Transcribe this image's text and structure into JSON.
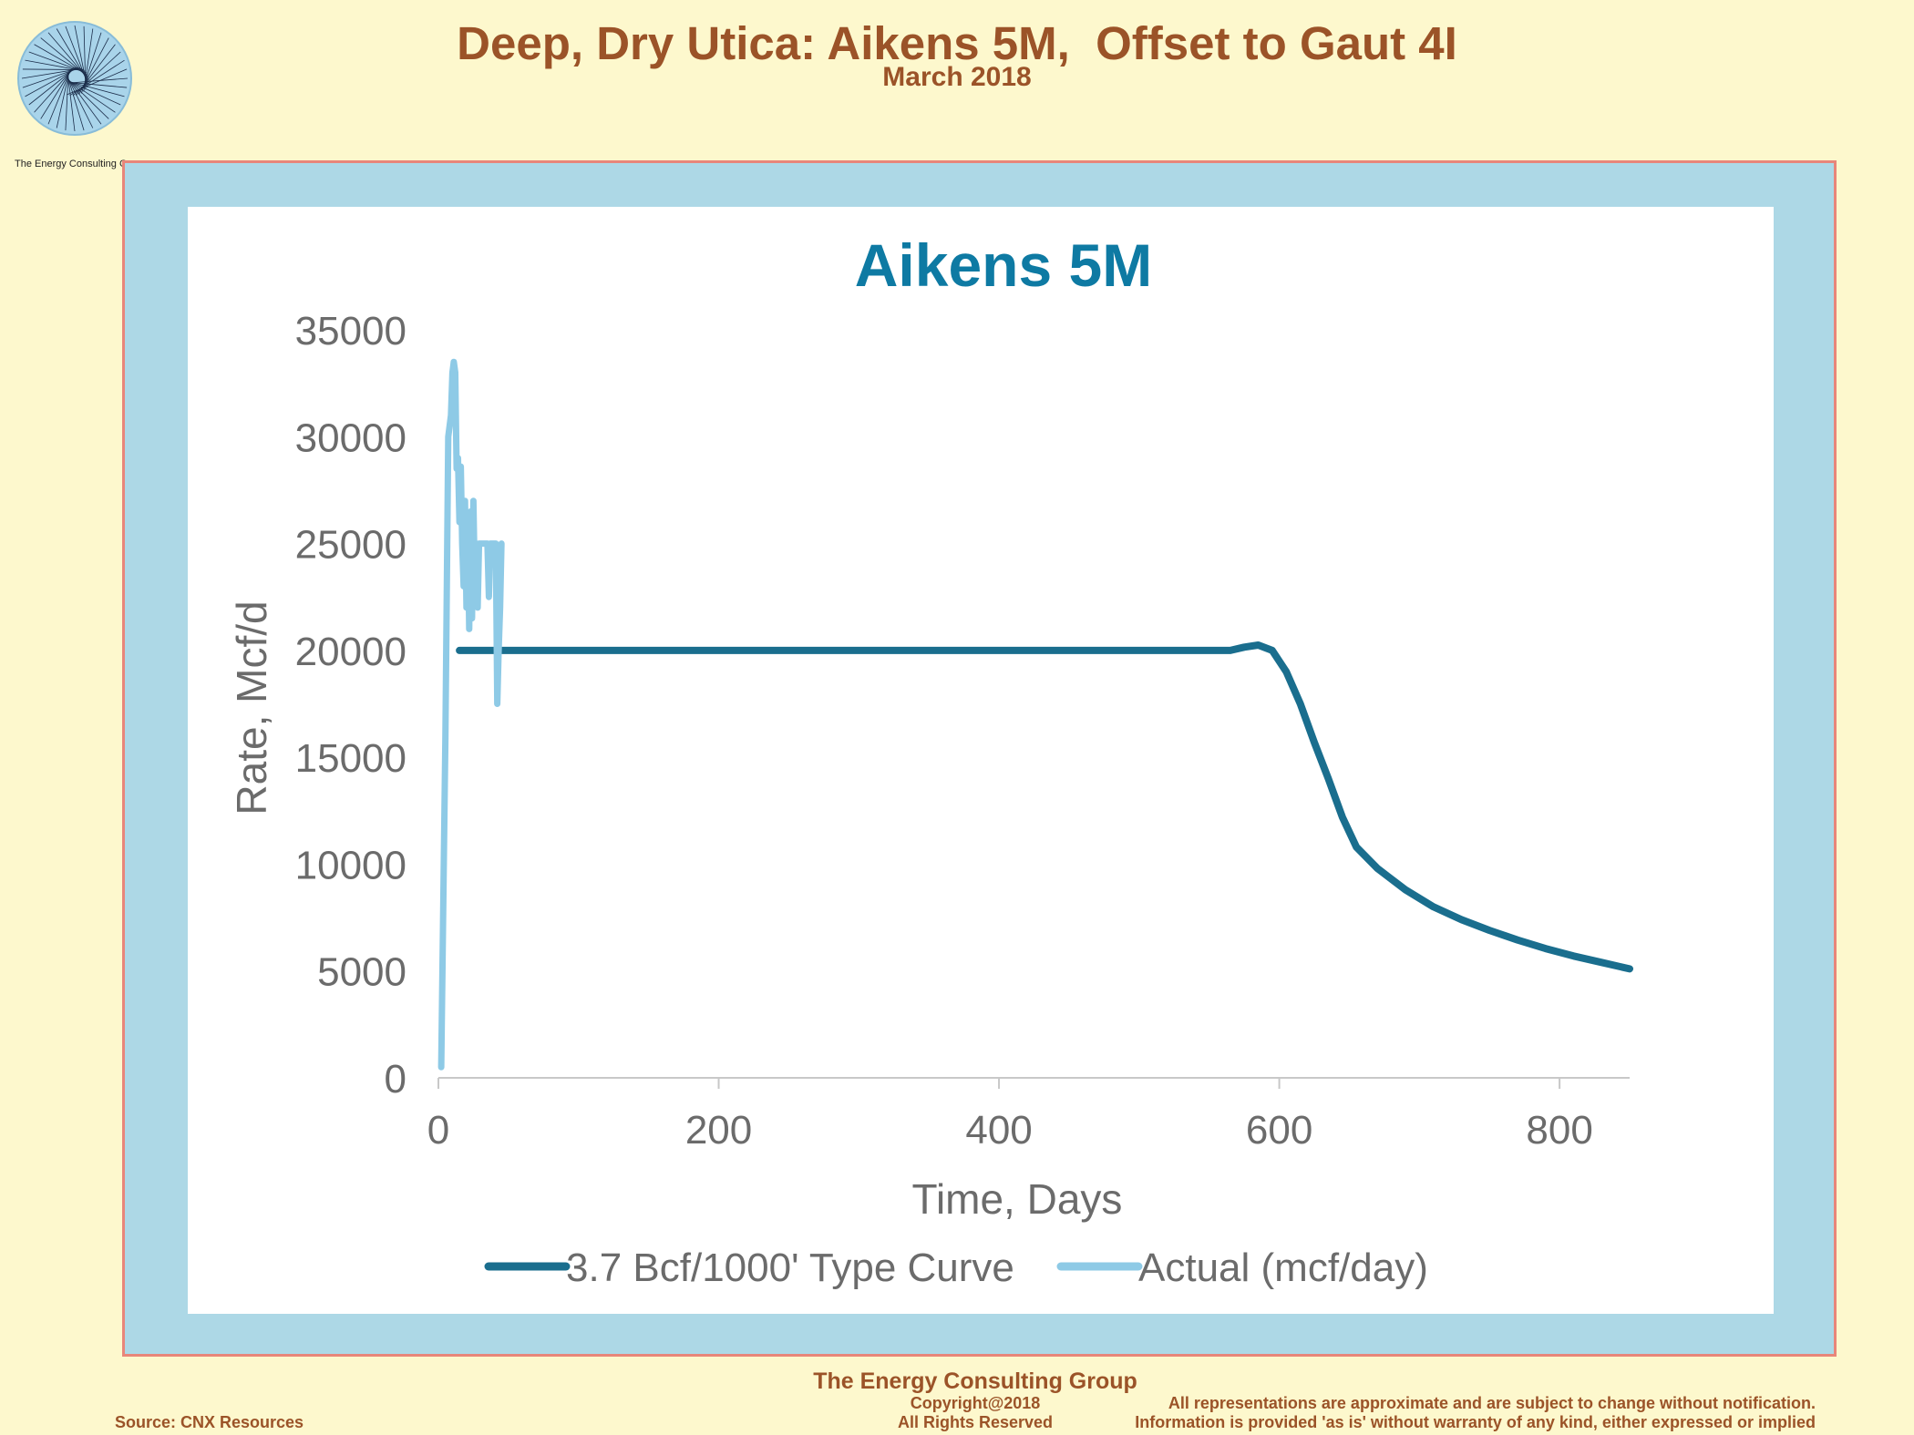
{
  "header": {
    "title": "Deep, Dry Utica: Aikens 5M,  Offset to Gaut 4I",
    "subtitle": "March 2018"
  },
  "logo": {
    "caption": "The Energy Consulting Group",
    "icon": "spiral-logo-icon"
  },
  "colors": {
    "page_bg": "#fdf8cd",
    "header_text": "#9b5328",
    "frame_bg": "#add8e6",
    "frame_border": "#e8867a",
    "type_curve": "#1a6e8e",
    "actual": "#8ecae6",
    "chart_title": "#0e7aa3",
    "axis_text": "#6b6b6b"
  },
  "chart_data": {
    "type": "line",
    "title": "Aikens 5M",
    "xlabel": "Time, Days",
    "ylabel": "Rate, Mcf/d",
    "xlim": [
      0,
      850
    ],
    "ylim": [
      0,
      35000
    ],
    "x_ticks": [
      "0",
      "200",
      "400",
      "600",
      "800"
    ],
    "y_ticks": [
      "0",
      "5000",
      "10000",
      "15000",
      "20000",
      "25000",
      "30000",
      "35000"
    ],
    "grid": false,
    "legend_position": "bottom",
    "series": [
      {
        "name": "3.7 Bcf/1000' Type Curve",
        "color": "#1a6e8e",
        "points": [
          [
            15,
            20000
          ],
          [
            100,
            20000
          ],
          [
            200,
            20000
          ],
          [
            300,
            20000
          ],
          [
            400,
            20000
          ],
          [
            500,
            20000
          ],
          [
            565,
            20000
          ],
          [
            575,
            20150
          ],
          [
            585,
            20250
          ],
          [
            595,
            20000
          ],
          [
            605,
            19000
          ],
          [
            615,
            17500
          ],
          [
            625,
            15700
          ],
          [
            635,
            14000
          ],
          [
            645,
            12200
          ],
          [
            655,
            10800
          ],
          [
            670,
            9800
          ],
          [
            690,
            8800
          ],
          [
            710,
            8000
          ],
          [
            730,
            7400
          ],
          [
            750,
            6900
          ],
          [
            770,
            6450
          ],
          [
            790,
            6050
          ],
          [
            810,
            5700
          ],
          [
            830,
            5400
          ],
          [
            850,
            5100
          ]
        ]
      },
      {
        "name": "Actual (mcf/day)",
        "color": "#8ecae6",
        "points": [
          [
            2,
            500
          ],
          [
            5,
            16000
          ],
          [
            7,
            30000
          ],
          [
            9,
            31000
          ],
          [
            10,
            33000
          ],
          [
            11,
            33500
          ],
          [
            12,
            33000
          ],
          [
            13,
            28500
          ],
          [
            14,
            29000
          ],
          [
            15,
            26000
          ],
          [
            16,
            28600
          ],
          [
            17,
            25000
          ],
          [
            18,
            23000
          ],
          [
            19,
            27000
          ],
          [
            20,
            22000
          ],
          [
            21,
            26000
          ],
          [
            22,
            21000
          ],
          [
            23,
            26500
          ],
          [
            24,
            21500
          ],
          [
            25,
            27000
          ],
          [
            26,
            23000
          ],
          [
            27,
            25000
          ],
          [
            28,
            22000
          ],
          [
            29,
            25000
          ],
          [
            31,
            25000
          ],
          [
            33,
            25000
          ],
          [
            35,
            25000
          ],
          [
            36,
            22500
          ],
          [
            37,
            25000
          ],
          [
            39,
            25000
          ],
          [
            41,
            25000
          ],
          [
            42,
            17500
          ],
          [
            43,
            20000
          ],
          [
            44,
            22000
          ],
          [
            45,
            25000
          ]
        ]
      }
    ]
  },
  "footer": {
    "org": "The Energy Consulting Group",
    "copyright": "Copyright@2018",
    "rights": "All Rights Reserved",
    "source": "Source: CNX Resources",
    "disclaimer_line1": "All representations are approximate and are subject to change without notification.",
    "disclaimer_line2": "Information is provided 'as is' without warranty of any kind, either expressed or implied"
  }
}
